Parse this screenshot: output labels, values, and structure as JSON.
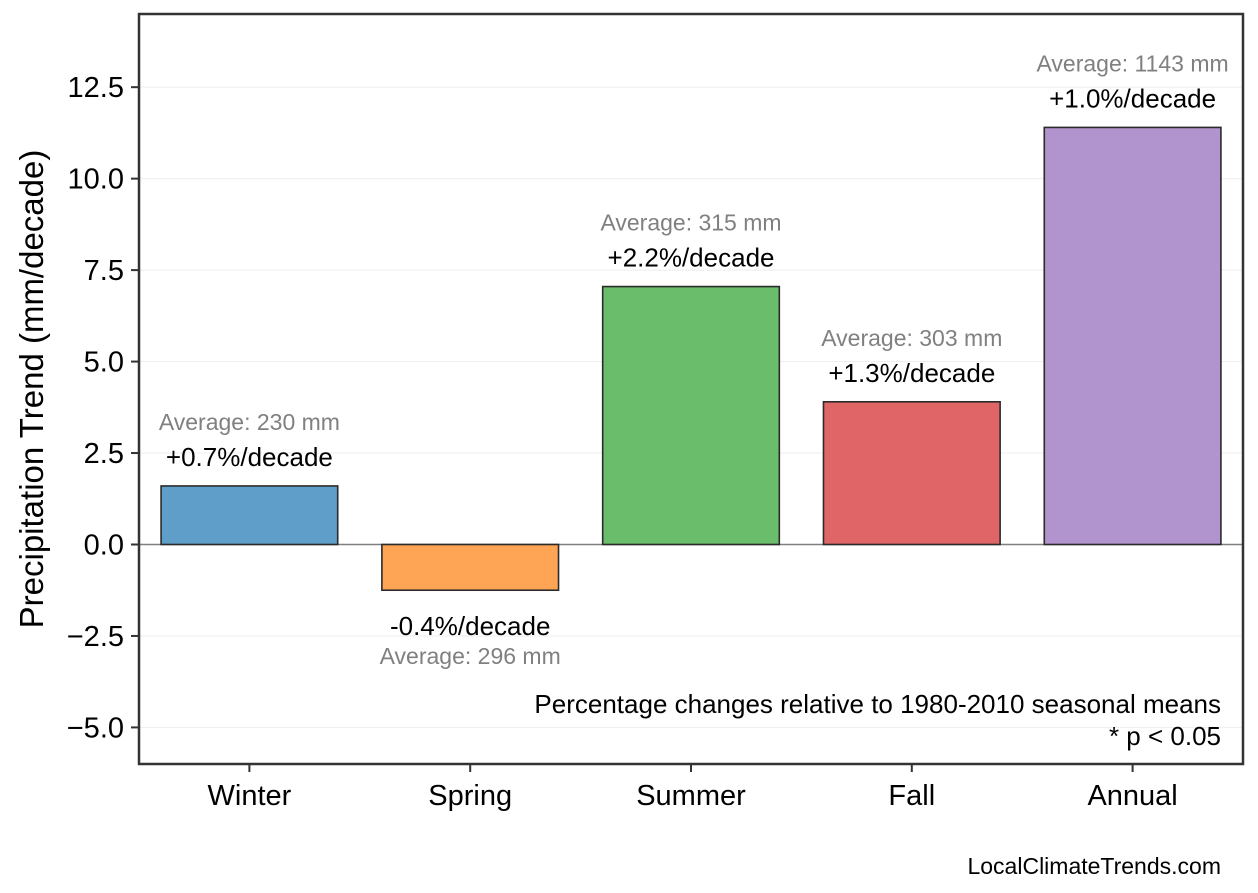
{
  "chart_data": {
    "type": "bar",
    "ylabel": "Precipitation Trend (mm/decade)",
    "ylim": [
      -6,
      14.5
    ],
    "yticks": [
      -5.0,
      -2.5,
      0.0,
      2.5,
      5.0,
      7.5,
      10.0,
      12.5
    ],
    "ytick_labels": [
      "−5.0",
      "−2.5",
      "0.0",
      "2.5",
      "5.0",
      "7.5",
      "10.0",
      "12.5"
    ],
    "grid": true,
    "categories": [
      "Winter",
      "Spring",
      "Summer",
      "Fall",
      "Annual"
    ],
    "values": [
      1.6,
      -1.25,
      7.05,
      3.9,
      11.4
    ],
    "colors": [
      "#5f9ec9",
      "#fda555",
      "#6abd6a",
      "#e06566",
      "#b193ce"
    ],
    "pct_labels": [
      "+0.7%/decade",
      "-0.4%/decade",
      "+2.2%/decade",
      "+1.3%/decade",
      "+1.0%/decade"
    ],
    "avg_labels": [
      "Average: 230 mm",
      "Average: 296 mm",
      "Average: 315 mm",
      "Average: 303 mm",
      "Average: 1143 mm"
    ],
    "annotations": [
      "Percentage changes relative to 1980-2010 seasonal means",
      "* p < 0.05"
    ]
  },
  "footer": "LocalClimateTrends.com"
}
